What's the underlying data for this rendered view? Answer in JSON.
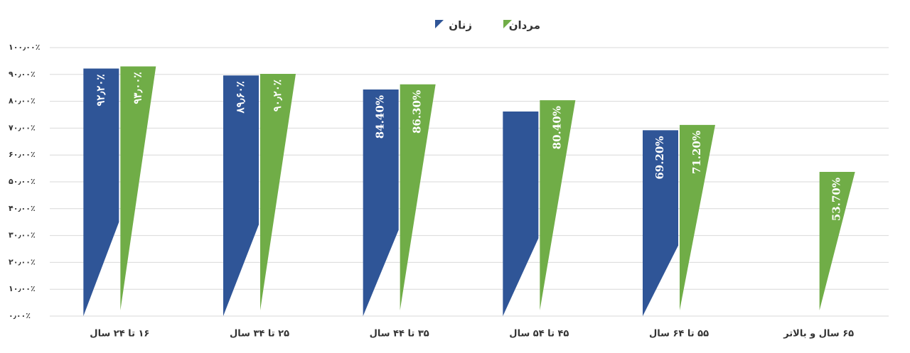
{
  "chart_data": {
    "type": "bar",
    "categories": [
      "۱۶ تا ۲۴ سال",
      "۲۵ تا ۳۴ سال",
      "۳۵ تا ۴۴ سال",
      "۴۵ تا ۵۴ سال",
      "۵۵ تا ۶۴ سال",
      "۶۵ سال و بالاتر"
    ],
    "series": [
      {
        "name": "زنان",
        "color": "#2f5597",
        "values": [
          92.2,
          89.6,
          84.4,
          76.2,
          69.2,
          null
        ],
        "value_labels": [
          "۹۲٫۲۰٪",
          "۸۹٫۶۰٪",
          "84.40%",
          null,
          "69.20%",
          null
        ]
      },
      {
        "name": "مردان",
        "color": "#70ad47",
        "values": [
          93.0,
          90.2,
          86.3,
          80.4,
          71.2,
          53.7
        ],
        "value_labels": [
          "۹۳٫۰۰٪",
          "۹۰٫۲۰٪",
          "86.30%",
          "80.40%",
          "71.20%",
          "53.70%"
        ]
      }
    ],
    "ylim": [
      0,
      100
    ],
    "yticks": [
      {
        "value": 0,
        "label": "۰٫۰۰٪"
      },
      {
        "value": 10,
        "label": "۱۰٫۰۰٪"
      },
      {
        "value": 20,
        "label": "۲۰٫۰۰٪"
      },
      {
        "value": 30,
        "label": "۳۰٫۰۰٪"
      },
      {
        "value": 40,
        "label": "۴۰٫۰۰٪"
      },
      {
        "value": 50,
        "label": "۵۰٫۰۰٪"
      },
      {
        "value": 60,
        "label": "۶۰٫۰۰٪"
      },
      {
        "value": 70,
        "label": "۷۰٫۰۰٪"
      },
      {
        "value": 80,
        "label": "۸۰٫۰۰٪"
      },
      {
        "value": 90,
        "label": "۹۰٫۰۰٪"
      },
      {
        "value": 100,
        "label": "۱۰۰٫۰۰٪"
      }
    ],
    "grid": true
  }
}
